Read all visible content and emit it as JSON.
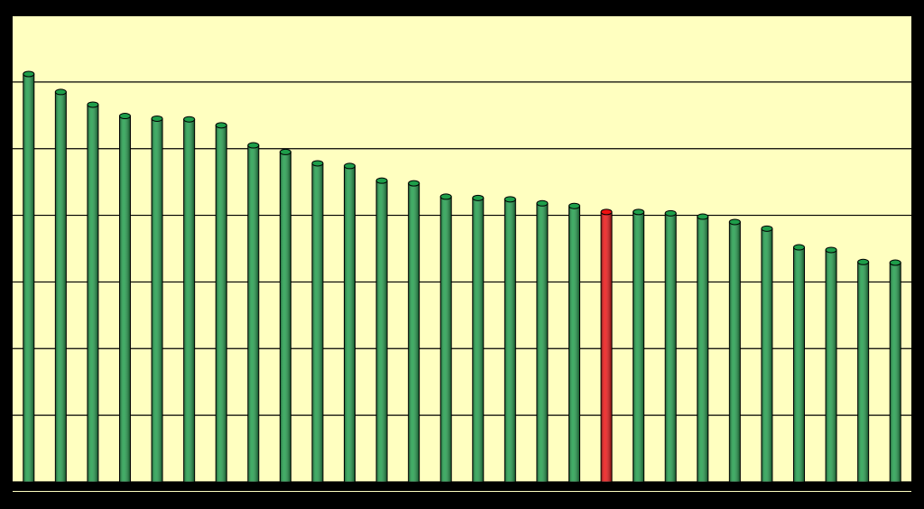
{
  "chart_data": {
    "type": "bar",
    "categories": [
      null,
      null,
      null,
      null,
      null,
      null,
      null,
      null,
      null,
      null,
      null,
      null,
      null,
      null,
      null,
      null,
      null,
      null,
      null,
      null,
      null,
      null,
      null,
      null,
      null,
      null,
      null,
      null
    ],
    "values": [
      6.12,
      5.85,
      5.66,
      5.49,
      5.45,
      5.44,
      5.35,
      5.05,
      4.95,
      4.78,
      4.74,
      4.52,
      4.48,
      4.28,
      4.26,
      4.24,
      4.18,
      4.14,
      4.05,
      4.05,
      4.03,
      3.98,
      3.9,
      3.8,
      3.52,
      3.48,
      3.3,
      3.29
    ],
    "colors": [
      "#1e9e4a",
      "#1e9e4a",
      "#1e9e4a",
      "#1e9e4a",
      "#1e9e4a",
      "#1e9e4a",
      "#1e9e4a",
      "#1e9e4a",
      "#1e9e4a",
      "#1e9e4a",
      "#1e9e4a",
      "#1e9e4a",
      "#1e9e4a",
      "#1e9e4a",
      "#1e9e4a",
      "#1e9e4a",
      "#1e9e4a",
      "#1e9e4a",
      "#ee1111",
      "#1e9e4a",
      "#1e9e4a",
      "#1e9e4a",
      "#1e9e4a",
      "#1e9e4a",
      "#1e9e4a",
      "#1e9e4a",
      "#1e9e4a",
      "#1e9e4a"
    ],
    "ylim": [
      0,
      7
    ],
    "yticks": [
      0,
      1,
      2,
      3,
      4,
      5,
      6,
      7
    ],
    "grid": true
  }
}
